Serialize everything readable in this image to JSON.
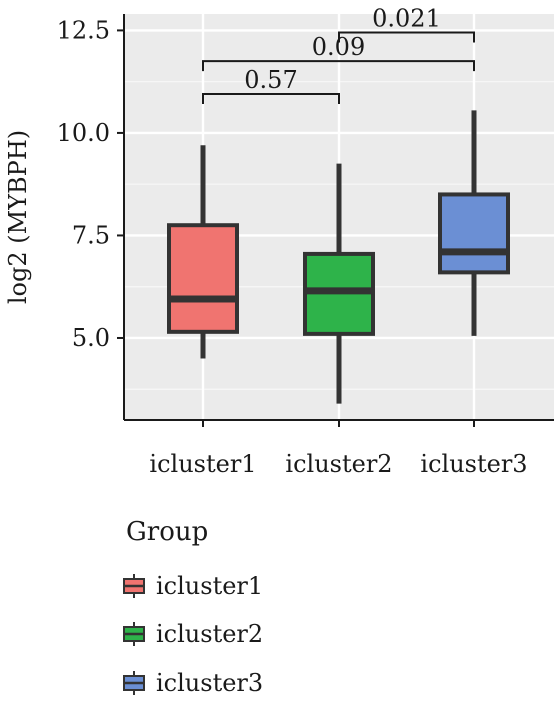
{
  "chart_data": {
    "type": "boxplot",
    "xlabel": "",
    "ylabel": "log2 (MYBPH)",
    "ylim": [
      3.0,
      12.9
    ],
    "y_ticks": [
      5.0,
      7.5,
      10.0,
      12.5
    ],
    "y_tick_labels": [
      "5.0",
      "7.5",
      "10.0",
      "12.5"
    ],
    "grid": true,
    "categories": [
      "icluster1",
      "icluster2",
      "icluster3"
    ],
    "boxes": [
      {
        "name": "icluster1",
        "min": 4.5,
        "q1": 5.15,
        "median": 5.95,
        "q3": 7.75,
        "max": 9.7,
        "color": "#F07470"
      },
      {
        "name": "icluster2",
        "min": 3.4,
        "q1": 5.1,
        "median": 6.15,
        "q3": 7.05,
        "max": 9.25,
        "color": "#2EB34A"
      },
      {
        "name": "icluster3",
        "min": 5.05,
        "q1": 6.6,
        "median": 7.1,
        "q3": 8.5,
        "max": 10.55,
        "color": "#6B8FD4"
      }
    ],
    "comparisons": [
      {
        "from": 0,
        "to": 1,
        "label": "0.57",
        "y": 10.95
      },
      {
        "from": 0,
        "to": 2,
        "label": "0.09",
        "y": 11.75
      },
      {
        "from": 1,
        "to": 2,
        "label": "0.021",
        "y": 12.45
      }
    ],
    "legend": {
      "title": "Group",
      "position": "bottom-left",
      "items": [
        "icluster1",
        "icluster2",
        "icluster3"
      ]
    }
  }
}
